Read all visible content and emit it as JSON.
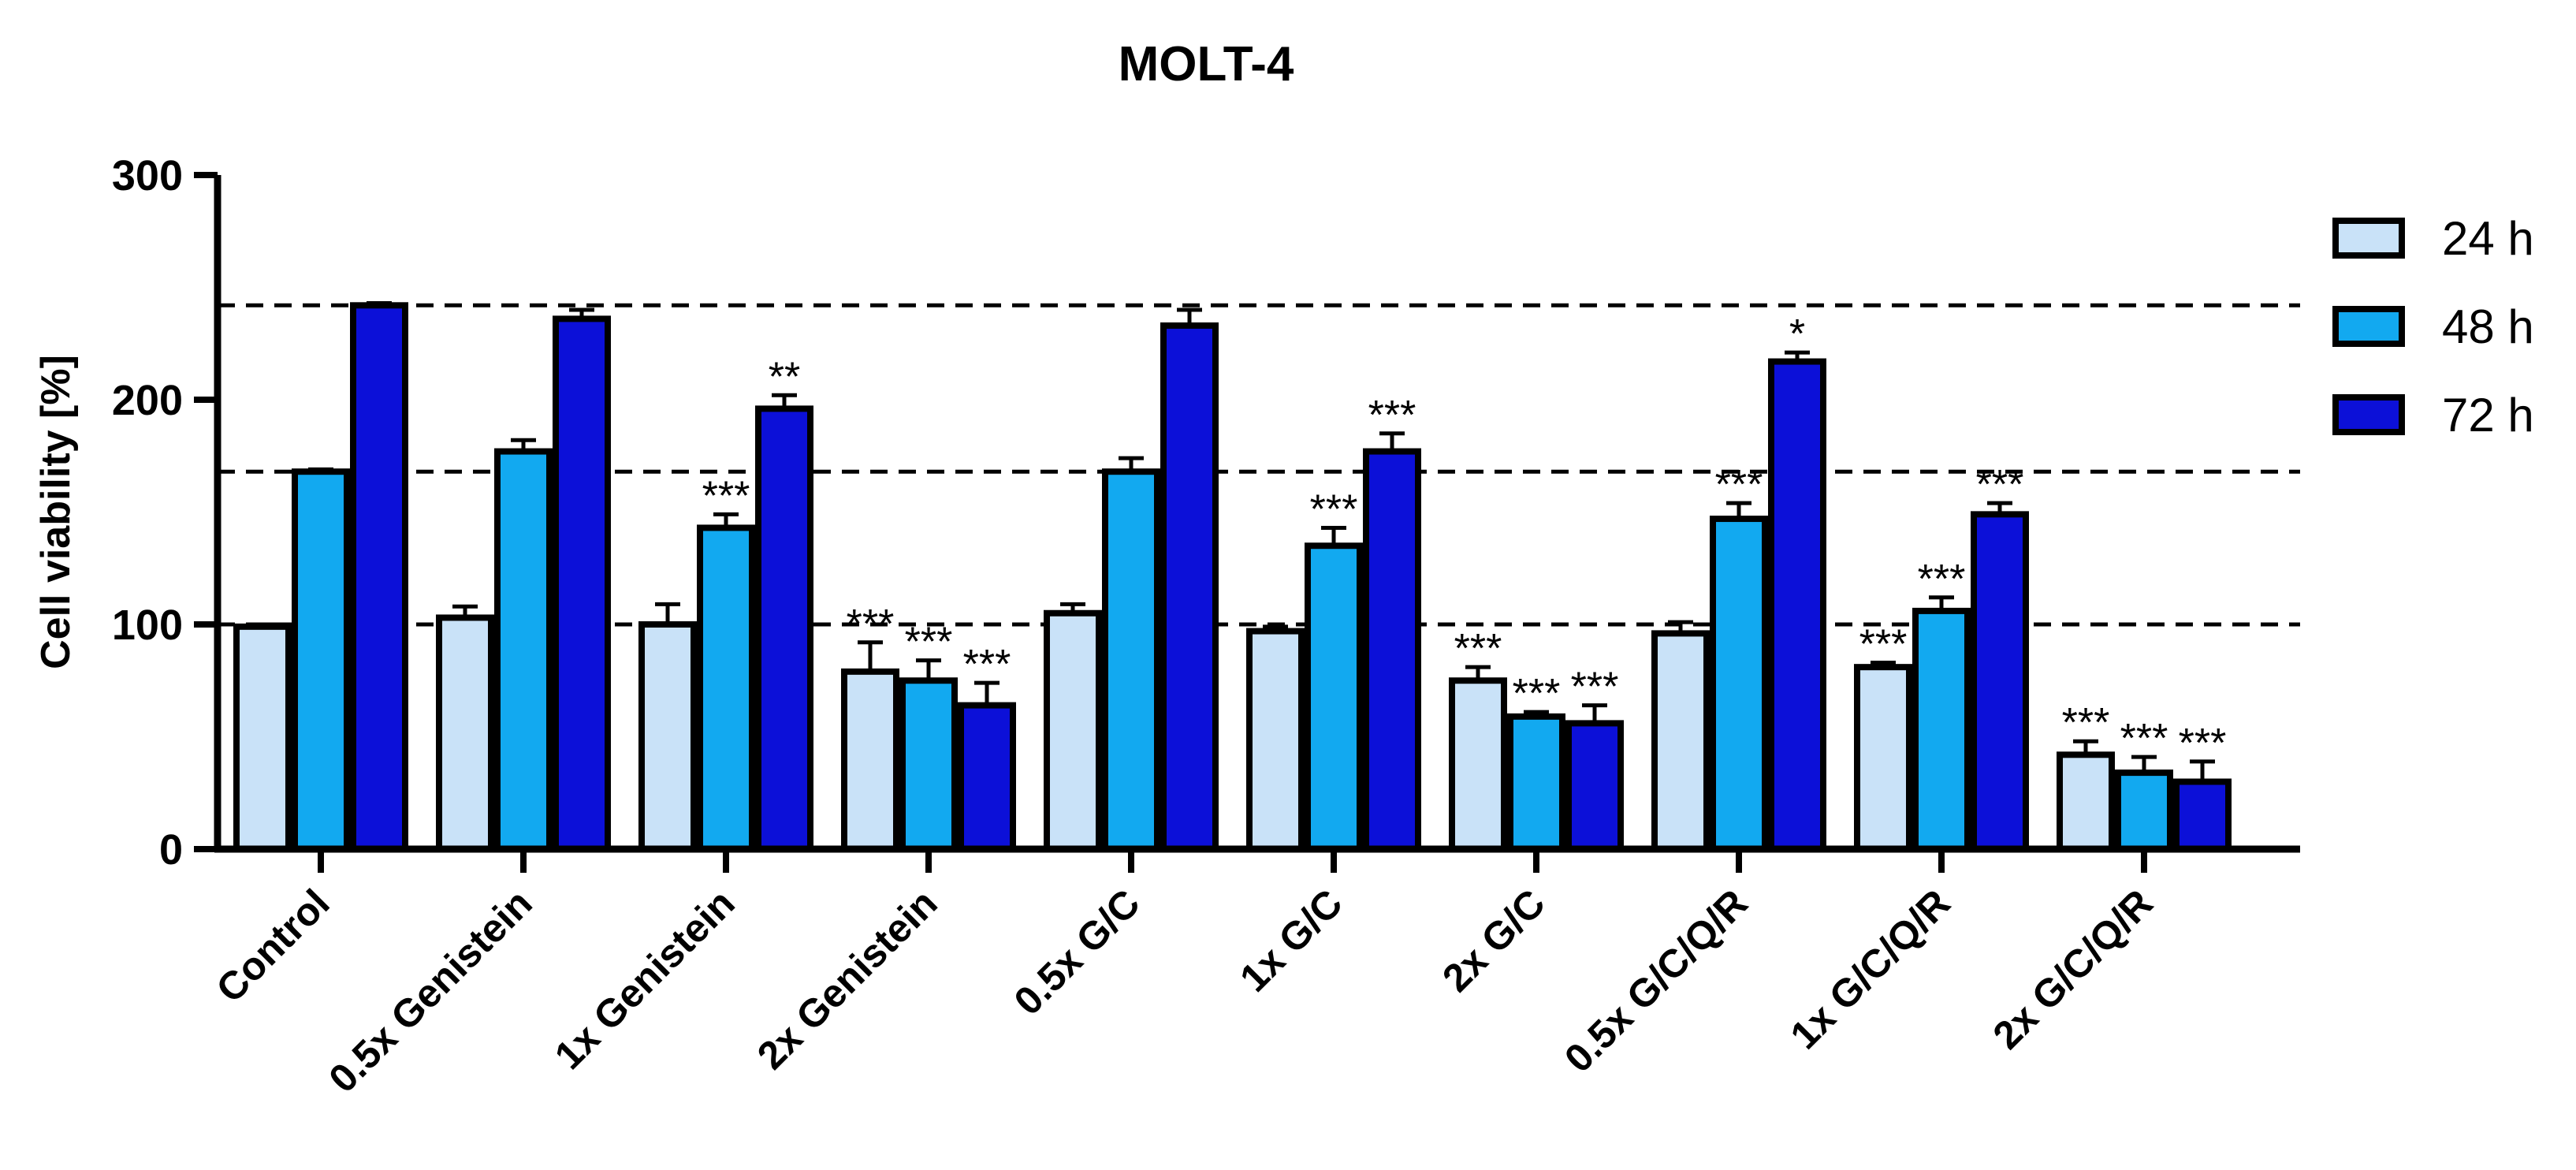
{
  "chart_data": {
    "type": "bar",
    "title": "MOLT-4",
    "xlabel": "",
    "ylabel": "Cell viability [%]",
    "ylim": [
      0,
      300
    ],
    "yticks": [
      0,
      100,
      200,
      300
    ],
    "grid": false,
    "reference_lines": [
      100,
      168,
      242
    ],
    "legend_position": "right",
    "categories": [
      "Control",
      "0.5x Genistein",
      "1x Genistein",
      "2x Genistein",
      "0.5x G/C",
      "1x G/C",
      "2x G/C",
      "0.5x G/C/Q/R",
      "1x G/C/Q/R",
      "2x G/C/Q/R"
    ],
    "series": [
      {
        "name": "24 h",
        "color": "#C9E2F8",
        "values": [
          99,
          103,
          100,
          79,
          105,
          97,
          75,
          96,
          81,
          42
        ],
        "errors": [
          1,
          5,
          9,
          13,
          4,
          2,
          6,
          5,
          2,
          6
        ],
        "significance": [
          "",
          "",
          "",
          "***",
          "",
          "",
          "***",
          "",
          "***",
          "***"
        ]
      },
      {
        "name": "48 h",
        "color": "#12A9F0",
        "values": [
          168,
          177,
          143,
          75,
          168,
          135,
          59,
          147,
          106,
          34
        ],
        "errors": [
          1,
          5,
          6,
          9,
          6,
          8,
          2,
          7,
          6,
          7
        ],
        "significance": [
          "",
          "",
          "***",
          "***",
          "",
          "***",
          "***",
          "***",
          "***",
          "***"
        ]
      },
      {
        "name": "72 h",
        "color": "#0C10D8",
        "values": [
          242,
          236,
          196,
          64,
          233,
          177,
          56,
          217,
          149,
          30
        ],
        "errors": [
          1,
          4,
          6,
          10,
          7,
          8,
          8,
          4,
          5,
          9
        ],
        "significance": [
          "",
          "",
          "**",
          "***",
          "",
          "***",
          "***",
          "*",
          "***",
          "***"
        ]
      }
    ]
  }
}
